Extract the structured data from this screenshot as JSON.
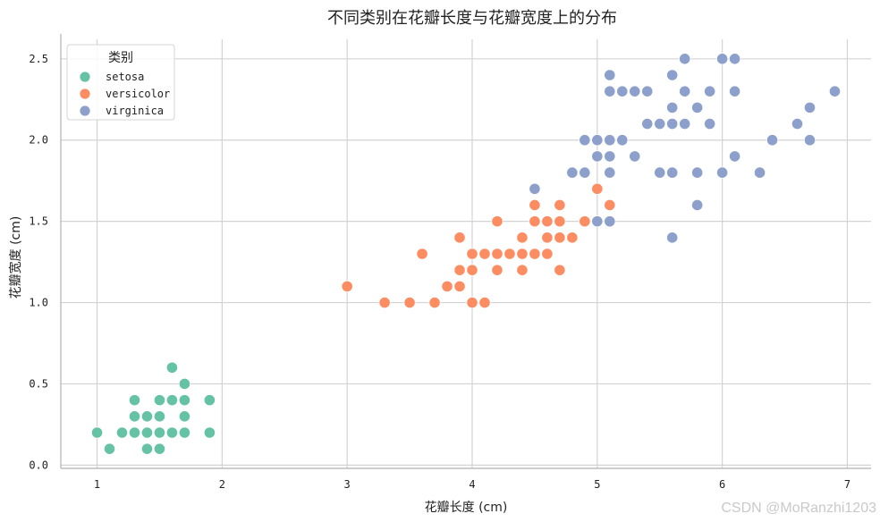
{
  "chart_data": {
    "type": "scatter",
    "title": "不同类别在花瓣长度与花瓣宽度上的分布",
    "xlabel": "花瓣长度 (cm)",
    "ylabel": "花瓣宽度 (cm)",
    "xlim": [
      0.71,
      7.19
    ],
    "ylim": [
      -0.02,
      2.62
    ],
    "xticks": [
      "1",
      "2",
      "3",
      "4",
      "5",
      "6",
      "7"
    ],
    "yticks": [
      "0.0",
      "0.5",
      "1.0",
      "1.5",
      "2.0",
      "2.5"
    ],
    "grid": true,
    "legend": {
      "title": "类别",
      "position": "top-left"
    },
    "series": [
      {
        "name": "setosa",
        "color": "#66c2a5",
        "points": [
          [
            1.0,
            0.2
          ],
          [
            1.1,
            0.1
          ],
          [
            1.2,
            0.2
          ],
          [
            1.3,
            0.2
          ],
          [
            1.3,
            0.3
          ],
          [
            1.3,
            0.4
          ],
          [
            1.4,
            0.1
          ],
          [
            1.4,
            0.2
          ],
          [
            1.4,
            0.3
          ],
          [
            1.5,
            0.1
          ],
          [
            1.5,
            0.2
          ],
          [
            1.5,
            0.3
          ],
          [
            1.5,
            0.4
          ],
          [
            1.6,
            0.2
          ],
          [
            1.6,
            0.4
          ],
          [
            1.6,
            0.6
          ],
          [
            1.7,
            0.2
          ],
          [
            1.7,
            0.3
          ],
          [
            1.7,
            0.4
          ],
          [
            1.7,
            0.5
          ],
          [
            1.9,
            0.2
          ],
          [
            1.9,
            0.4
          ]
        ]
      },
      {
        "name": "versicolor",
        "color": "#fc8d62",
        "points": [
          [
            3.0,
            1.1
          ],
          [
            3.3,
            1.0
          ],
          [
            3.5,
            1.0
          ],
          [
            3.6,
            1.3
          ],
          [
            3.7,
            1.0
          ],
          [
            3.8,
            1.1
          ],
          [
            3.9,
            1.1
          ],
          [
            3.9,
            1.2
          ],
          [
            3.9,
            1.4
          ],
          [
            4.0,
            1.0
          ],
          [
            4.0,
            1.2
          ],
          [
            4.0,
            1.3
          ],
          [
            4.1,
            1.0
          ],
          [
            4.1,
            1.3
          ],
          [
            4.2,
            1.2
          ],
          [
            4.2,
            1.3
          ],
          [
            4.2,
            1.5
          ],
          [
            4.3,
            1.3
          ],
          [
            4.4,
            1.2
          ],
          [
            4.4,
            1.3
          ],
          [
            4.4,
            1.4
          ],
          [
            4.5,
            1.3
          ],
          [
            4.5,
            1.5
          ],
          [
            4.5,
            1.6
          ],
          [
            4.6,
            1.3
          ],
          [
            4.6,
            1.4
          ],
          [
            4.6,
            1.5
          ],
          [
            4.7,
            1.2
          ],
          [
            4.7,
            1.4
          ],
          [
            4.7,
            1.5
          ],
          [
            4.7,
            1.6
          ],
          [
            4.8,
            1.4
          ],
          [
            4.9,
            1.5
          ],
          [
            5.0,
            1.7
          ],
          [
            5.1,
            1.6
          ]
        ]
      },
      {
        "name": "virginica",
        "color": "#8da0cb",
        "points": [
          [
            4.5,
            1.7
          ],
          [
            4.8,
            1.8
          ],
          [
            4.9,
            1.8
          ],
          [
            4.9,
            2.0
          ],
          [
            5.0,
            1.5
          ],
          [
            5.0,
            1.9
          ],
          [
            5.0,
            2.0
          ],
          [
            5.1,
            1.5
          ],
          [
            5.1,
            1.8
          ],
          [
            5.1,
            1.9
          ],
          [
            5.1,
            2.0
          ],
          [
            5.1,
            2.3
          ],
          [
            5.1,
            2.4
          ],
          [
            5.2,
            2.0
          ],
          [
            5.2,
            2.3
          ],
          [
            5.3,
            1.9
          ],
          [
            5.3,
            2.3
          ],
          [
            5.4,
            2.1
          ],
          [
            5.4,
            2.3
          ],
          [
            5.5,
            1.8
          ],
          [
            5.5,
            2.1
          ],
          [
            5.6,
            1.4
          ],
          [
            5.6,
            1.8
          ],
          [
            5.6,
            2.1
          ],
          [
            5.6,
            2.2
          ],
          [
            5.6,
            2.4
          ],
          [
            5.7,
            2.1
          ],
          [
            5.7,
            2.3
          ],
          [
            5.7,
            2.5
          ],
          [
            5.8,
            1.6
          ],
          [
            5.8,
            1.8
          ],
          [
            5.8,
            2.2
          ],
          [
            5.9,
            2.1
          ],
          [
            5.9,
            2.3
          ],
          [
            6.0,
            1.8
          ],
          [
            6.0,
            2.5
          ],
          [
            6.1,
            1.9
          ],
          [
            6.1,
            2.3
          ],
          [
            6.1,
            2.5
          ],
          [
            6.3,
            1.8
          ],
          [
            6.4,
            2.0
          ],
          [
            6.6,
            2.1
          ],
          [
            6.7,
            2.0
          ],
          [
            6.7,
            2.2
          ],
          [
            6.9,
            2.3
          ]
        ]
      }
    ]
  },
  "watermark": "CSDN @MoRanzhi1203"
}
